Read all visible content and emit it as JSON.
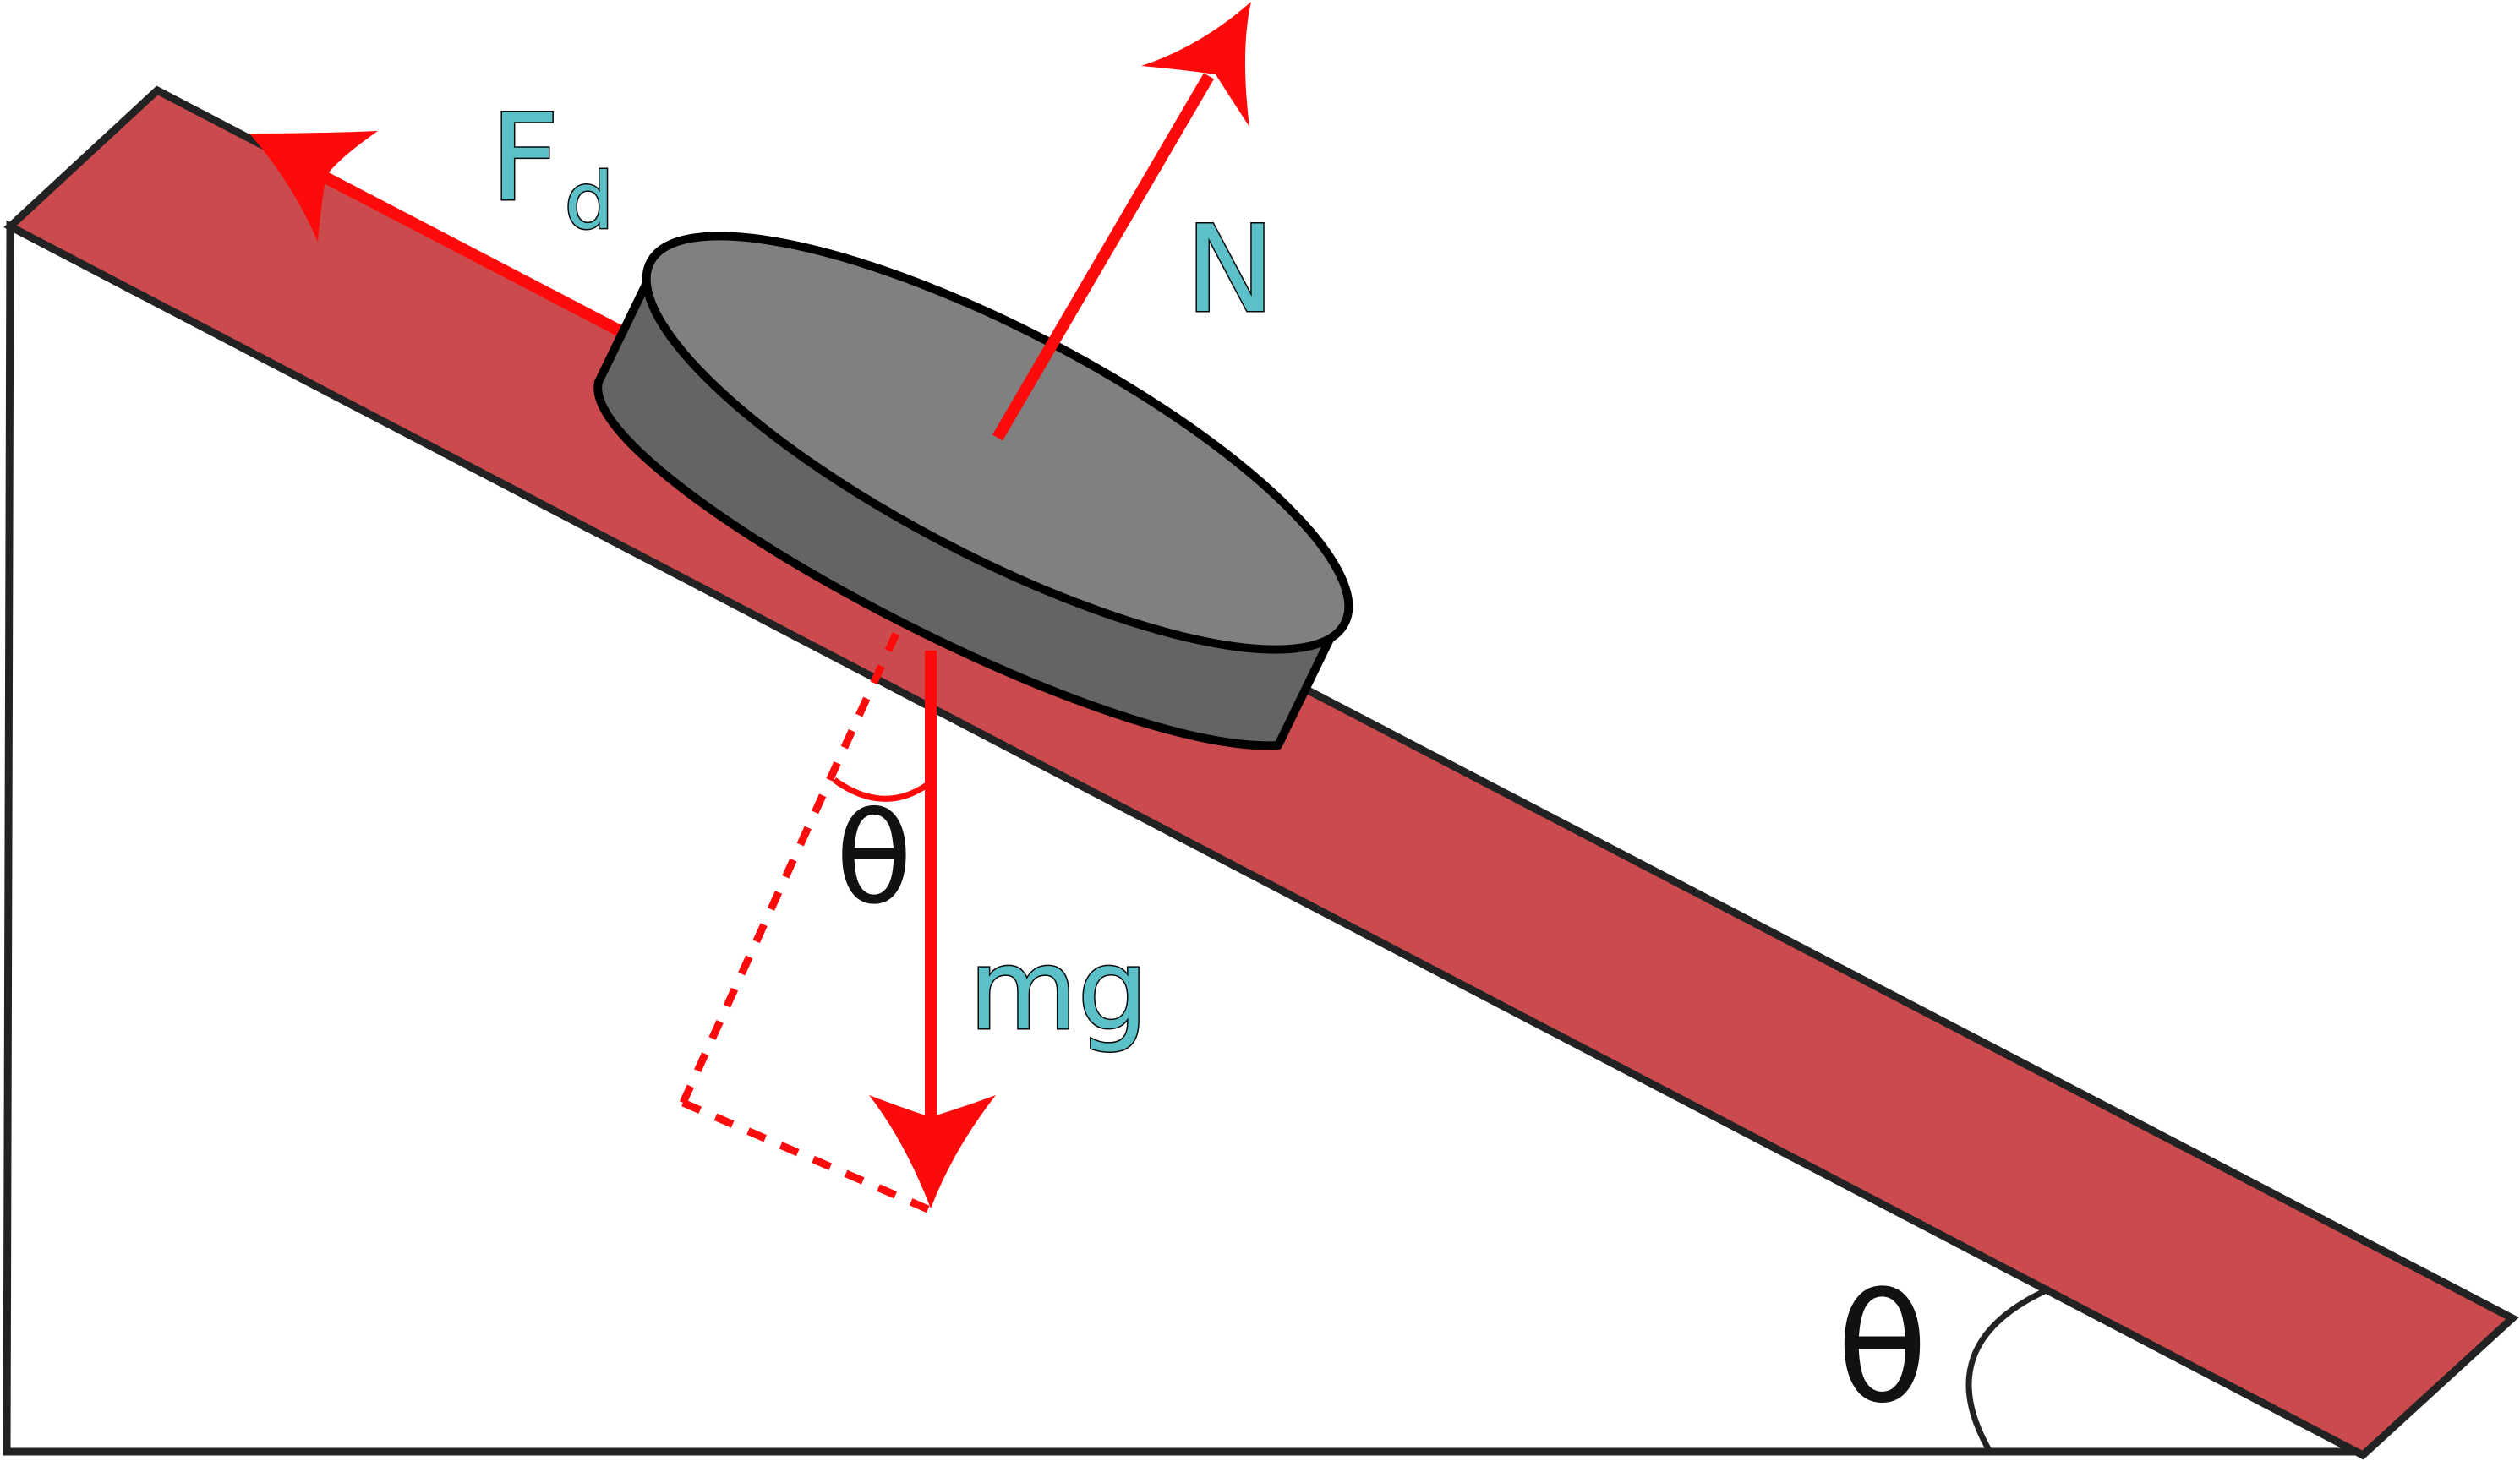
{
  "labels": {
    "friction_main": "F",
    "friction_sub": "d",
    "normal": "N",
    "weight": "mg",
    "theta_component": "θ",
    "theta_incline": "θ"
  },
  "colors": {
    "ramp_fill": "#cb4a4e",
    "outline": "#222222",
    "force_arrow": "#ff0a0a",
    "puck_top": "#808080",
    "puck_side": "#646464",
    "label_fill": "#5bc0c8"
  },
  "icons": {
    "friction_arrow": "arrow-up-slope-icon",
    "normal_arrow": "arrow-perpendicular-icon",
    "weight_arrow": "arrow-down-icon"
  }
}
